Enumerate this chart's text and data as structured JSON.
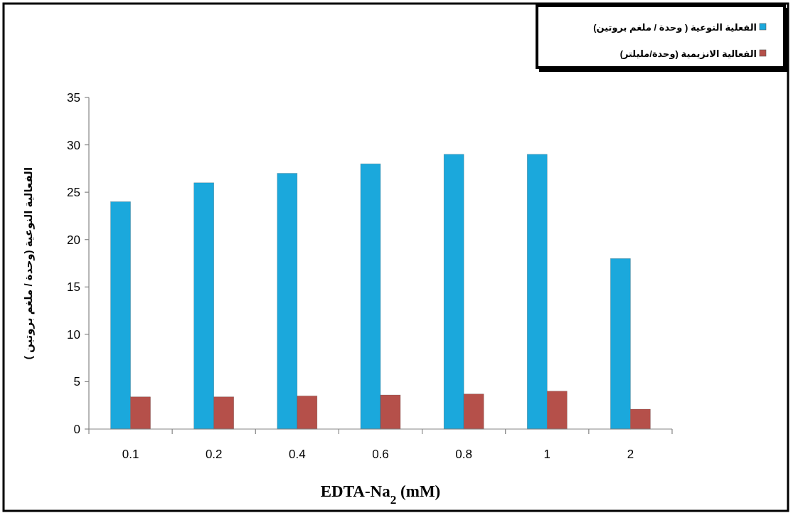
{
  "chart_data": {
    "type": "bar",
    "categories": [
      "0.1",
      "0.2",
      "0.4",
      "0.6",
      "0.8",
      "1",
      "2"
    ],
    "series": [
      {
        "name": "الفعلية النوعية ( وحدة / ملغم بروتين)",
        "color": "#1ba8dc",
        "values": [
          24,
          26,
          27,
          28,
          29,
          29,
          18
        ]
      },
      {
        "name": "الفعالية الانزيمية (وحدة/مليلتر)",
        "color": "#b5504a",
        "values": [
          3.4,
          3.4,
          3.5,
          3.6,
          3.7,
          4.0,
          2.1
        ]
      }
    ],
    "xlabel": "EDTA-Na$_{2}$ (mM)",
    "ylabel": "الفعالية النوعية (وحدة / ملغم بروتين )",
    "ylim": [
      0,
      35
    ],
    "yticks": [
      0,
      5,
      10,
      15,
      20,
      25,
      30,
      35
    ],
    "legend": "top right"
  }
}
